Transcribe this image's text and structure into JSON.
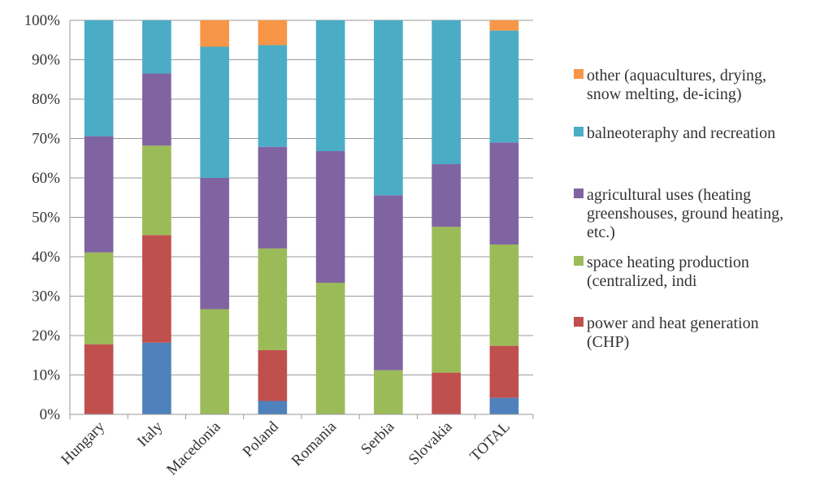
{
  "chart_data": {
    "type": "bar",
    "stacked": true,
    "percent": true,
    "categories": [
      "Hungary",
      "Italy",
      "Macedonia",
      "Poland",
      "Romania",
      "Serbia",
      "Slovakia",
      "TOTAL"
    ],
    "series": [
      {
        "name": "",
        "color": "#4F81BD",
        "values": [
          0,
          18.2,
          0,
          3.4,
          0,
          0,
          0,
          4.2
        ]
      },
      {
        "name": "power and heat generation (CHP)",
        "color": "#C0504D",
        "values": [
          17.8,
          27.3,
          0,
          12.9,
          0,
          0,
          10.6,
          13.2
        ]
      },
      {
        "name": "space heating production (centralized, indi",
        "color": "#9BBB59",
        "values": [
          23.3,
          22.7,
          26.7,
          25.8,
          33.4,
          11.2,
          37.0,
          25.7
        ]
      },
      {
        "name": "agricultural uses (heating greenshouses, ground heating, etc.)",
        "color": "#8064A2",
        "values": [
          29.5,
          18.3,
          33.3,
          25.8,
          33.4,
          44.4,
          15.9,
          25.9
        ]
      },
      {
        "name": "balneoteraphy and recreation",
        "color": "#4BACC6",
        "values": [
          29.4,
          13.5,
          33.3,
          25.8,
          33.2,
          44.4,
          36.5,
          28.4
        ]
      },
      {
        "name": "other (aquacultures, drying, snow melting, de-icing)",
        "color": "#F79646",
        "values": [
          0,
          0,
          6.7,
          6.3,
          0,
          0,
          0,
          2.6
        ]
      }
    ],
    "ylim": [
      0,
      100
    ],
    "yticks": [
      "0%",
      "10%",
      "20%",
      "30%",
      "40%",
      "50%",
      "60%",
      "70%",
      "80%",
      "90%",
      "100%"
    ],
    "grid": true,
    "legend_position": "right",
    "legend": [
      {
        "lines": [
          "other (aquacultures, drying,",
          "snow melting, de-icing)"
        ],
        "color": "#F79646"
      },
      {
        "lines": [
          "balneoteraphy and recreation"
        ],
        "color": "#4BACC6"
      },
      {
        "lines": [
          "agricultural uses (heating",
          "greenshouses, ground heating,",
          "etc.)"
        ],
        "color": "#8064A2"
      },
      {
        "lines": [
          "space heating production",
          "(centralized, indi"
        ],
        "color": "#9BBB59"
      },
      {
        "lines": [
          "power and heat generation",
          "(CHP)"
        ],
        "color": "#C0504D"
      }
    ]
  }
}
